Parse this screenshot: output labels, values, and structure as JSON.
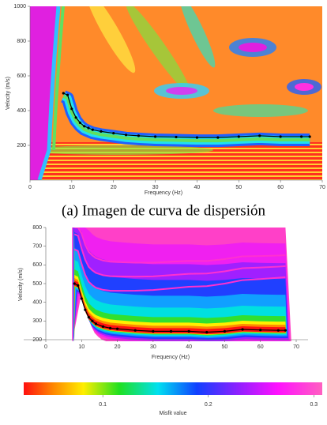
{
  "chart_data": [
    {
      "type": "line",
      "caption": "(a) Imagen de curva de dispersión",
      "xlabel": "Frequency (Hz)",
      "ylabel": "Velocity (m/s)",
      "x": [
        8,
        9,
        10,
        11,
        12,
        13,
        14,
        15,
        17,
        20,
        23,
        26,
        30,
        35,
        40,
        45,
        50,
        55,
        60,
        65,
        67
      ],
      "values": [
        500,
        490,
        410,
        360,
        330,
        310,
        300,
        290,
        280,
        270,
        260,
        255,
        250,
        248,
        245,
        245,
        250,
        255,
        250,
        250,
        250
      ],
      "color": "#000000",
      "xlim": [
        0,
        70
      ],
      "xticks": [
        0,
        10,
        20,
        30,
        40,
        50,
        60,
        70
      ],
      "ylim": [
        0,
        1000
      ],
      "yticks": [
        200,
        400,
        600,
        800,
        1000
      ]
    },
    {
      "type": "line",
      "xlabel": "Frequency (Hz)",
      "ylabel": "Velocity (m/s)",
      "x": [
        8,
        9,
        10,
        11,
        12,
        13,
        14,
        16,
        18,
        20,
        25,
        30,
        35,
        40,
        45,
        50,
        55,
        60,
        65,
        67
      ],
      "values": [
        500,
        490,
        420,
        360,
        320,
        300,
        285,
        270,
        262,
        258,
        250,
        245,
        245,
        245,
        240,
        245,
        255,
        252,
        250,
        250
      ],
      "color": "#000000",
      "xlim": [
        0,
        70
      ],
      "xticks": [
        0,
        10,
        20,
        30,
        40,
        50,
        60,
        70
      ],
      "ylim": [
        200,
        800
      ],
      "yticks": [
        200,
        300,
        400,
        500,
        600,
        700,
        800
      ],
      "colorbar": {
        "label": "Misfit value",
        "lim": [
          0.025,
          0.308
        ],
        "ticks": [
          0.1,
          0.2,
          0.3
        ]
      }
    }
  ]
}
